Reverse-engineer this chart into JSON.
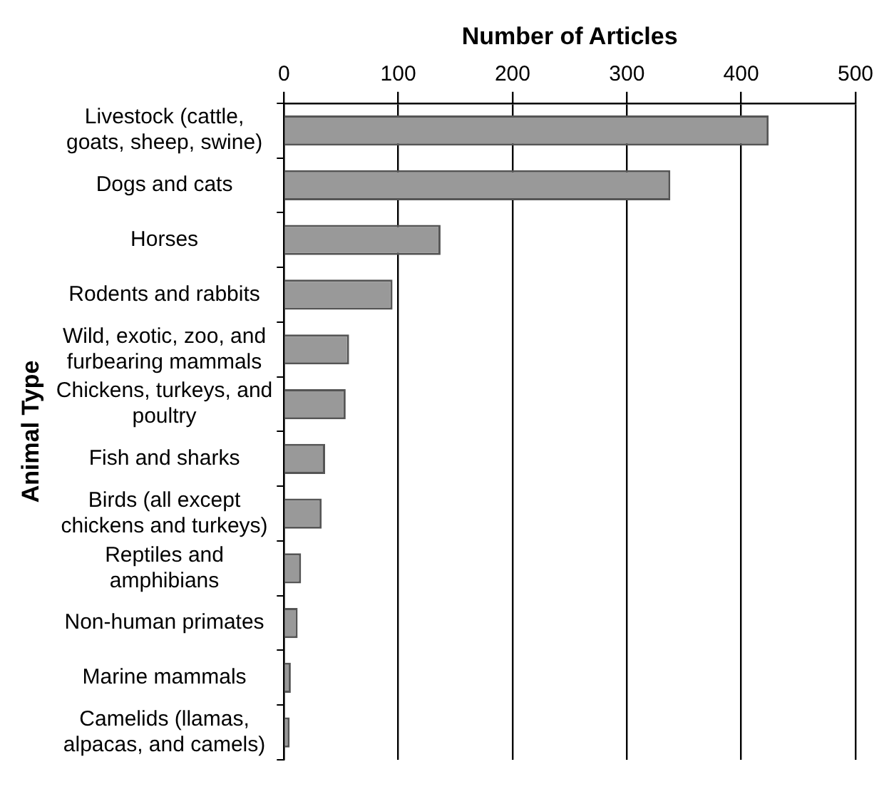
{
  "chart_data": {
    "type": "bar",
    "orientation": "horizontal",
    "xlabel": "Number of Articles",
    "ylabel": "Animal Type",
    "categories": [
      "Livestock (cattle, goats, sheep, swine)",
      "Dogs and cats",
      "Horses",
      "Rodents and rabbits",
      "Wild, exotic, zoo, and furbearing mammals",
      "Chickens, turkeys, and poultry",
      "Fish and sharks",
      "Birds (all except chickens and turkeys)",
      "Reptiles and amphibians",
      "Non-human primates",
      "Marine mammals",
      "Camelids (llamas, alpacas, and camels)"
    ],
    "values": [
      424,
      338,
      137,
      95,
      57,
      54,
      36,
      33,
      15,
      12,
      6,
      5
    ],
    "color": "#999999",
    "xlim": [
      0,
      500
    ],
    "xticks": [
      0,
      100,
      200,
      300,
      400,
      500
    ],
    "grid": "x",
    "legend": false
  }
}
